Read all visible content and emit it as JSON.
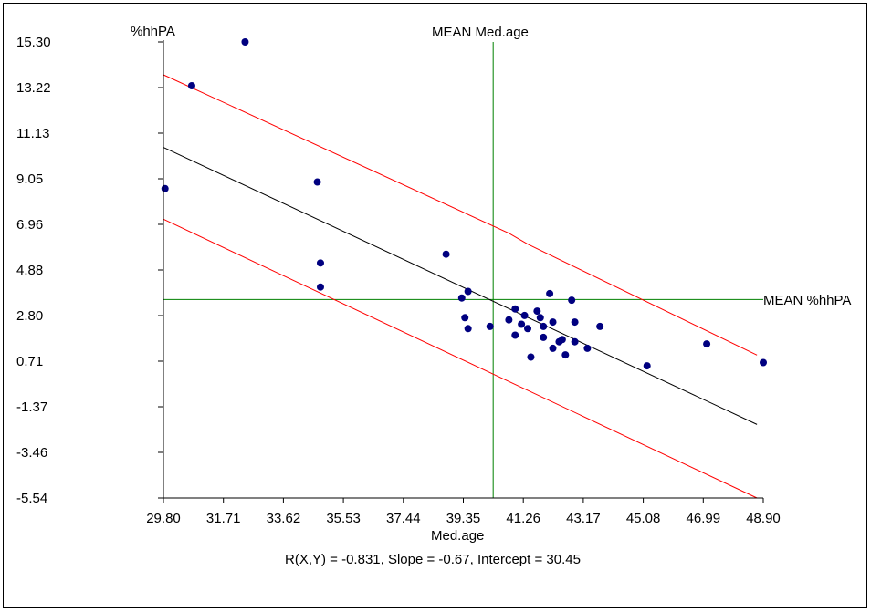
{
  "chart_data": {
    "type": "scatter",
    "ylabel": "%hhPA",
    "xlabel": "Med.age",
    "caption": "R(X,Y) = -0.831, Slope =  -0.67, Intercept =  30.45",
    "xlim": [
      29.8,
      48.9
    ],
    "ylim": [
      -5.54,
      15.3
    ],
    "x_ticks": [
      "29.80",
      "31.71",
      "33.62",
      "35.53",
      "37.44",
      "39.35",
      "41.26",
      "43.17",
      "45.08",
      "46.99",
      "48.90"
    ],
    "y_ticks": [
      "15.30",
      "13.22",
      "11.13",
      "9.05",
      "6.96",
      "4.88",
      "2.80",
      "0.71",
      "-1.37",
      "-3.46",
      "-5.54"
    ],
    "mean_x": {
      "value": 40.3,
      "label": "MEAN Med.age"
    },
    "mean_y": {
      "value": 3.53,
      "label": "MEAN %hhPA"
    },
    "regression": {
      "slope": -0.67,
      "intercept": 30.45,
      "x_range": [
        29.8,
        48.7
      ]
    },
    "confidence_upper": [
      [
        29.8,
        13.8
      ],
      [
        40.8,
        6.56
      ],
      [
        41.4,
        6.06
      ],
      [
        48.7,
        0.99
      ]
    ],
    "confidence_lower": [
      [
        29.8,
        7.2
      ],
      [
        33.5,
        4.7
      ],
      [
        48.7,
        -5.54
      ]
    ],
    "points": [
      {
        "x": 32.4,
        "y": 15.3
      },
      {
        "x": 30.7,
        "y": 13.3
      },
      {
        "x": 29.85,
        "y": 8.6
      },
      {
        "x": 34.7,
        "y": 8.9
      },
      {
        "x": 34.8,
        "y": 5.2
      },
      {
        "x": 34.8,
        "y": 4.1
      },
      {
        "x": 38.8,
        "y": 5.6
      },
      {
        "x": 39.5,
        "y": 3.9
      },
      {
        "x": 39.3,
        "y": 3.6
      },
      {
        "x": 39.4,
        "y": 2.7
      },
      {
        "x": 39.5,
        "y": 2.2
      },
      {
        "x": 40.2,
        "y": 2.3
      },
      {
        "x": 40.8,
        "y": 2.6
      },
      {
        "x": 41.0,
        "y": 3.1
      },
      {
        "x": 41.0,
        "y": 1.9
      },
      {
        "x": 41.2,
        "y": 2.4
      },
      {
        "x": 41.3,
        "y": 2.8
      },
      {
        "x": 41.4,
        "y": 2.2
      },
      {
        "x": 41.5,
        "y": 0.9
      },
      {
        "x": 41.7,
        "y": 3.0
      },
      {
        "x": 41.8,
        "y": 2.7
      },
      {
        "x": 41.9,
        "y": 2.3
      },
      {
        "x": 41.9,
        "y": 1.8
      },
      {
        "x": 42.1,
        "y": 3.8
      },
      {
        "x": 42.2,
        "y": 2.5
      },
      {
        "x": 42.2,
        "y": 1.3
      },
      {
        "x": 42.4,
        "y": 1.6
      },
      {
        "x": 42.5,
        "y": 1.7
      },
      {
        "x": 42.6,
        "y": 1.0
      },
      {
        "x": 42.8,
        "y": 3.5
      },
      {
        "x": 42.9,
        "y": 2.5
      },
      {
        "x": 42.9,
        "y": 1.6
      },
      {
        "x": 43.3,
        "y": 1.3
      },
      {
        "x": 43.7,
        "y": 2.3
      },
      {
        "x": 45.2,
        "y": 0.5
      },
      {
        "x": 47.1,
        "y": 1.5
      },
      {
        "x": 48.9,
        "y": 0.65
      }
    ],
    "colors": {
      "points": "#000080",
      "regression": "#000000",
      "confidence": "#ff0000",
      "mean_lines": "#008000",
      "axis": "#000000"
    },
    "grid": false,
    "legend": "none"
  }
}
